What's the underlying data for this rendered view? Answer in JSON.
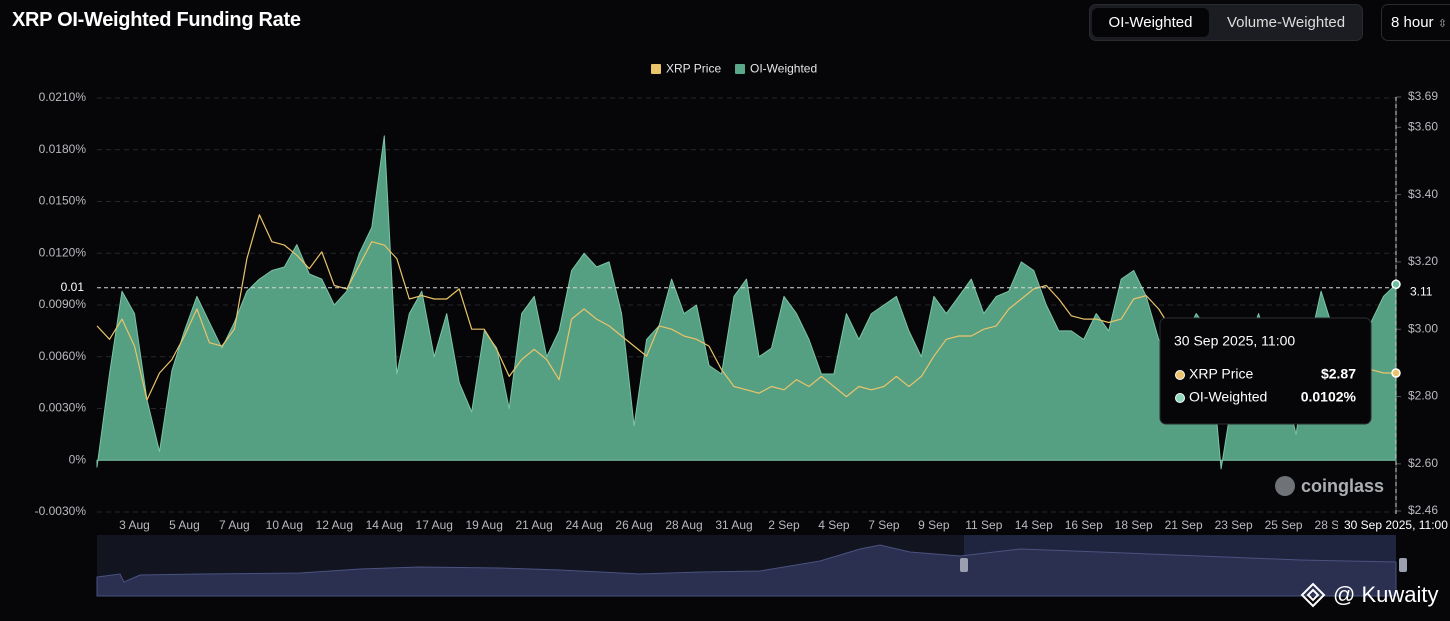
{
  "controls": {
    "toggle": [
      "OI-Weighted",
      "Volume-Weighted"
    ],
    "interval": "8 hour"
  },
  "watermark": "coinglass",
  "credit": "@ Kuwaity",
  "chart_data": {
    "type": "area-line",
    "title": "XRP OI-Weighted Funding Rate",
    "categories": [
      null,
      null,
      null,
      "3 Aug",
      null,
      null,
      null,
      "5 Aug",
      null,
      null,
      null,
      "7 Aug",
      null,
      null,
      null,
      "10 Aug",
      null,
      null,
      null,
      "12 Aug",
      null,
      null,
      null,
      "14 Aug",
      null,
      null,
      null,
      "17 Aug",
      null,
      null,
      null,
      "19 Aug",
      null,
      null,
      null,
      "21 Aug",
      null,
      null,
      null,
      "24 Aug",
      null,
      null,
      null,
      "26 Aug",
      null,
      null,
      null,
      "28 Aug",
      null,
      null,
      null,
      "31 Aug",
      null,
      null,
      null,
      "2 Sep",
      null,
      null,
      null,
      "4 Sep",
      null,
      null,
      null,
      "7 Sep",
      null,
      null,
      null,
      "9 Sep",
      null,
      null,
      null,
      "11 Sep",
      null,
      null,
      null,
      "14 Sep",
      null,
      null,
      null,
      "16 Sep",
      null,
      null,
      null,
      "18 Sep",
      null,
      null,
      null,
      "21 Sep",
      null,
      null,
      null,
      "23 Sep",
      null,
      null,
      null,
      "25 Sep",
      null,
      null,
      null,
      "28 Sep",
      null,
      null,
      null,
      null,
      null
    ],
    "series": [
      {
        "name": "XRP Price",
        "color": "#e9c46a",
        "axis": "y2",
        "values": [
          3.01,
          2.97,
          3.03,
          2.95,
          2.79,
          2.87,
          2.91,
          2.98,
          3.06,
          2.96,
          2.95,
          3.0,
          3.21,
          3.34,
          3.26,
          3.25,
          3.22,
          3.18,
          3.23,
          3.13,
          3.12,
          3.19,
          3.26,
          3.25,
          3.21,
          3.09,
          3.1,
          3.09,
          3.09,
          3.12,
          3.0,
          3.0,
          2.94,
          2.86,
          2.91,
          2.94,
          2.91,
          2.85,
          3.03,
          3.06,
          3.03,
          3.01,
          2.98,
          2.95,
          2.92,
          3.01,
          3.0,
          2.98,
          2.97,
          2.95,
          2.88,
          2.83,
          2.82,
          2.81,
          2.83,
          2.82,
          2.85,
          2.83,
          2.86,
          2.83,
          2.8,
          2.83,
          2.82,
          2.83,
          2.86,
          2.83,
          2.86,
          2.92,
          2.97,
          2.98,
          2.98,
          3.0,
          3.01,
          3.06,
          3.09,
          3.12,
          3.13,
          3.09,
          3.04,
          3.03,
          3.03,
          3.02,
          3.03,
          3.09,
          3.1,
          3.06,
          3.0,
          2.97,
          2.95,
          2.94,
          2.92,
          2.91,
          2.92,
          2.95,
          2.94,
          2.92,
          2.91,
          2.9,
          2.89,
          2.88,
          2.87,
          2.88,
          2.88,
          2.87,
          2.87
        ]
      },
      {
        "name": "OI-Weighted",
        "color": "#5aa88a",
        "values": [
          -0.0004,
          0.005,
          0.0098,
          0.0085,
          0.0035,
          0.0005,
          0.0052,
          0.0075,
          0.0095,
          0.008,
          0.0065,
          0.008,
          0.0098,
          0.0105,
          0.011,
          0.0112,
          0.0125,
          0.0108,
          0.0105,
          0.009,
          0.0098,
          0.012,
          0.0135,
          0.0188,
          0.005,
          0.0085,
          0.0098,
          0.006,
          0.0085,
          0.0045,
          0.0028,
          0.0075,
          0.0065,
          0.003,
          0.0085,
          0.0095,
          0.006,
          0.0075,
          0.011,
          0.012,
          0.0112,
          0.0115,
          0.0085,
          0.002,
          0.007,
          0.0078,
          0.0105,
          0.0085,
          0.009,
          0.0055,
          0.005,
          0.0095,
          0.0105,
          0.006,
          0.0065,
          0.0095,
          0.0085,
          0.007,
          0.005,
          0.005,
          0.0085,
          0.007,
          0.0085,
          0.009,
          0.0095,
          0.0075,
          0.006,
          0.0095,
          0.0085,
          0.0095,
          0.0105,
          0.0085,
          0.0095,
          0.0098,
          0.0115,
          0.011,
          0.009,
          0.0075,
          0.0075,
          0.007,
          0.0085,
          0.0075,
          0.0105,
          0.011,
          0.0095,
          0.007,
          0.0065,
          0.007,
          0.0085,
          0.0075,
          -0.0005,
          0.004,
          0.0065,
          0.0085,
          0.006,
          0.0045,
          0.0015,
          0.0065,
          0.0098,
          0.0075,
          0.007,
          0.0065,
          0.008,
          0.0095,
          0.0102
        ]
      }
    ],
    "ylim": [
      -0.003,
      0.021
    ],
    "yticks": [
      {
        "value": -0.003,
        "label": "-0.0030%"
      },
      {
        "value": 0,
        "label": "0%"
      },
      {
        "value": 0.003,
        "label": "0.0030%"
      },
      {
        "value": 0.006,
        "label": "0.0060%"
      },
      {
        "value": 0.009,
        "label": "0.0090%"
      },
      {
        "value": 0.012,
        "label": "0.0120%"
      },
      {
        "value": 0.015,
        "label": "0.0150%"
      },
      {
        "value": 0.018,
        "label": "0.0180%"
      },
      {
        "value": 0.021,
        "label": "0.0210%"
      }
    ],
    "y2lim": [
      2.46,
      3.69
    ],
    "y2ticks": [
      {
        "value": 2.46,
        "label": "$2.46"
      },
      {
        "value": 2.6,
        "label": "$2.60"
      },
      {
        "value": 2.8,
        "label": "$2.80"
      },
      {
        "value": 3.0,
        "label": "$3.00"
      },
      {
        "value": 3.2,
        "label": "$3.20"
      },
      {
        "value": 3.4,
        "label": "$3.40"
      },
      {
        "value": 3.6,
        "label": "$3.60"
      },
      {
        "value": 3.69,
        "label": "$3.69"
      }
    ],
    "grid": true,
    "legend": "top",
    "crosshair": {
      "x_label": "30 Sep 2025, 11:00",
      "y": 0.01,
      "y2": 3.11
    },
    "tooltip": {
      "values": [
        "$2.87",
        "0.0102%"
      ]
    }
  }
}
